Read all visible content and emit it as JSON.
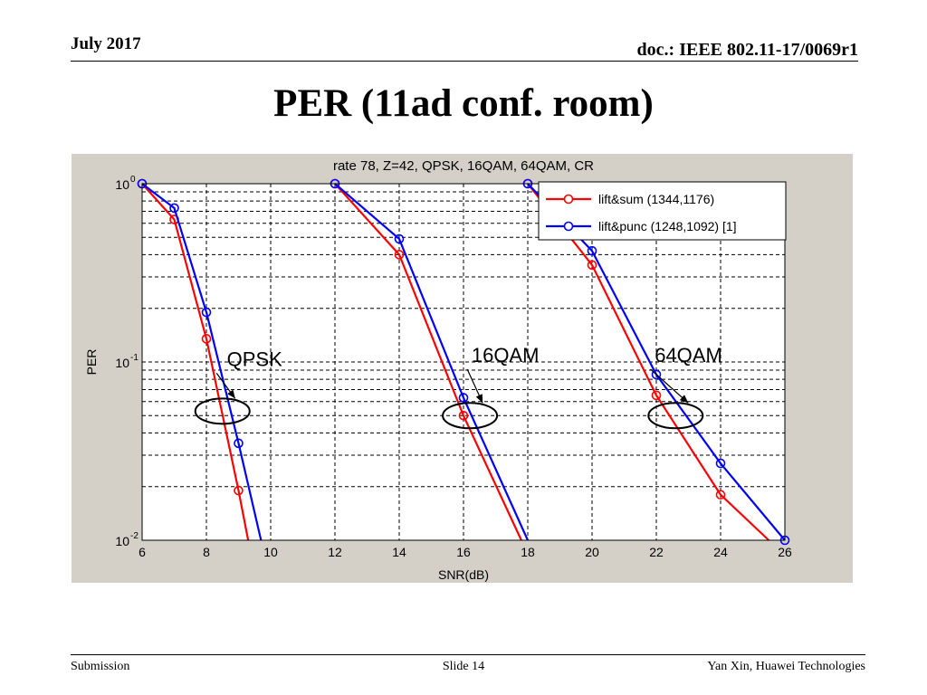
{
  "header": {
    "date": "July 2017",
    "doc": "doc.: IEEE 802.11-17/0069r1"
  },
  "slide_title": "PER (11ad conf. room)",
  "footer": {
    "left": "Submission",
    "center": "Slide 14",
    "right": "Yan Xin, Huawei Technologies"
  },
  "chart_data": {
    "type": "line",
    "title": "rate 78, Z=42, QPSK, 16QAM, 64QAM, CR",
    "xlabel": "SNR(dB)",
    "ylabel": "PER",
    "xlim": [
      6,
      26
    ],
    "ylim": [
      0.01,
      1
    ],
    "yscale": "log",
    "xticks": [
      6,
      8,
      10,
      12,
      14,
      16,
      18,
      20,
      22,
      24,
      26
    ],
    "yticks": [
      {
        "value": 1,
        "base": "10",
        "exp": "0"
      },
      {
        "value": 0.1,
        "base": "10",
        "exp": "-1"
      },
      {
        "value": 0.01,
        "base": "10",
        "exp": "-2"
      }
    ],
    "grid": true,
    "legend_position": "top-right",
    "series": [
      {
        "name": "lift&sum (1344,1176)",
        "color": "#ff0000",
        "groups": [
          {
            "x": [
              6,
              7,
              8,
              9,
              9.3
            ],
            "y": [
              1,
              0.63,
              0.135,
              0.019,
              0.01
            ]
          },
          {
            "x": [
              12,
              14,
              16,
              17.8
            ],
            "y": [
              1,
              0.4,
              0.05,
              0.01
            ]
          },
          {
            "x": [
              18,
              20,
              22,
              24,
              25.5
            ],
            "y": [
              1,
              0.35,
              0.065,
              0.018,
              0.01
            ]
          }
        ]
      },
      {
        "name": "lift&punc (1248,1092) [1]",
        "color": "#0000ff",
        "groups": [
          {
            "x": [
              6,
              7,
              8,
              9,
              9.7
            ],
            "y": [
              1,
              0.73,
              0.19,
              0.035,
              0.01
            ]
          },
          {
            "x": [
              12,
              14,
              16,
              18
            ],
            "y": [
              1,
              0.49,
              0.063,
              0.01
            ]
          },
          {
            "x": [
              18,
              20,
              22,
              24,
              26
            ],
            "y": [
              1,
              0.42,
              0.085,
              0.027,
              0.01
            ]
          }
        ]
      }
    ],
    "annotations": [
      {
        "text": "QPSK",
        "x": 9.5,
        "y": 0.095
      },
      {
        "text": "16QAM",
        "x": 17.3,
        "y": 0.1
      },
      {
        "text": "64QAM",
        "x": 23,
        "y": 0.1
      }
    ],
    "ellipses": [
      {
        "cx": 8.5,
        "cy": 0.053
      },
      {
        "cx": 16.2,
        "cy": 0.05
      },
      {
        "cx": 22.6,
        "cy": 0.05
      }
    ]
  }
}
